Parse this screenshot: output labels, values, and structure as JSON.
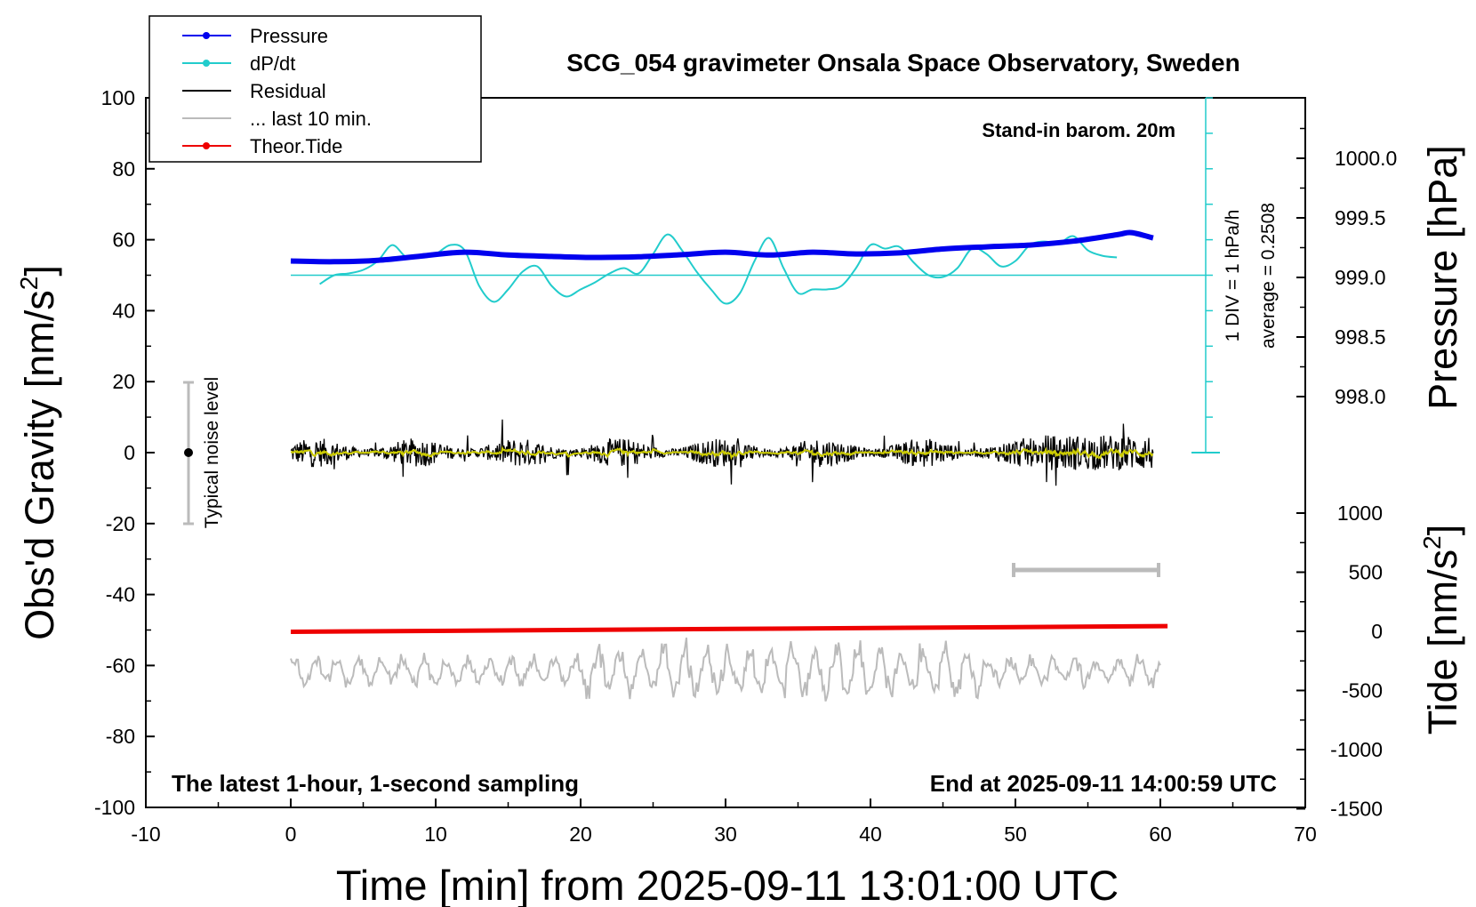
{
  "chart_data": {
    "type": "line",
    "title": "SCG_054 gravimeter Onsala Space Observatory, Sweden",
    "xlabel": "Time [min] from 2025-09-11 13:01:00 UTC",
    "ylabel_left": "Obs'd Gravity [nm/s",
    "ylabel_left_sup": "2",
    "ylabel_left_end": "]",
    "ylabel_right_top": "Pressure [hPa]",
    "ylabel_right_bottom": "Tide [nm/s",
    "ylabel_right_bottom_sup": "2",
    "ylabel_right_bottom_end": "]",
    "xlim": [
      -10,
      70
    ],
    "ylim": [
      -100,
      100
    ],
    "xticks": [
      "-10",
      "0",
      "10",
      "20",
      "30",
      "40",
      "50",
      "60",
      "70"
    ],
    "yticks": [
      "100",
      "80",
      "60",
      "40",
      "20",
      "0",
      "-20",
      "-40",
      "-60",
      "-80",
      "-100"
    ],
    "pressure_ticks": [
      "1000.0",
      "999.5",
      "999.0",
      "998.5",
      "998.0"
    ],
    "tide_ticks": [
      "1000",
      "500",
      "0",
      "-500",
      "-1000",
      "-1500"
    ],
    "legend": [
      {
        "label": "Pressure",
        "color": "#0000ee"
      },
      {
        "label": "dP/dt",
        "color": "#22cccc"
      },
      {
        "label": "Residual",
        "color": "#000000"
      },
      {
        "label": "... last 10 min.",
        "color": "#bbbbbb"
      },
      {
        "label": "Theor.Tide",
        "color": "#ee0000"
      }
    ],
    "annotations": {
      "barom": "Stand-in barom. 20m",
      "div_note": "1 DIV = 1 hPa/h",
      "average": "average = 0.2508",
      "noise": "Typical noise level",
      "latest": "The latest 1-hour, 1-second sampling",
      "end": "End at 2025-09-11 14:00:59 UTC"
    },
    "series": [
      {
        "name": "Pressure",
        "x": [
          0,
          3,
          6,
          9,
          12,
          15,
          18,
          21,
          24,
          27,
          30,
          33,
          36,
          39,
          42,
          45,
          48,
          51,
          54,
          57,
          58,
          59.5
        ],
        "y": [
          54,
          53.8,
          54.2,
          55.4,
          56.5,
          55.7,
          55.3,
          55.0,
          55.2,
          55.8,
          56.5,
          55.7,
          56.5,
          56.0,
          56.3,
          57.4,
          58.0,
          58.5,
          59.6,
          61.4,
          62.0,
          60.5
        ]
      },
      {
        "name": "dP/dt",
        "baseline": 50,
        "x": [
          2,
          3,
          4,
          5,
          6,
          7,
          8,
          9,
          10,
          11,
          12,
          13,
          14,
          15,
          16,
          17,
          18,
          19,
          20,
          21,
          22,
          23,
          24,
          25,
          26,
          27,
          28,
          29,
          30,
          31,
          32,
          33,
          34,
          35,
          36,
          37,
          38,
          39,
          40,
          41,
          42,
          43,
          44,
          45,
          46,
          47,
          48,
          49,
          50,
          51,
          52,
          53,
          54,
          55,
          56,
          57
        ],
        "y": [
          47.5,
          50,
          50.5,
          51.5,
          54,
          58.5,
          55,
          55.5,
          56,
          58.5,
          57,
          47,
          42.5,
          46,
          51,
          52.5,
          47,
          44,
          46,
          48,
          50.5,
          52,
          50.5,
          56,
          61.5,
          57,
          51,
          46,
          42,
          45,
          54,
          60.5,
          52,
          45,
          46,
          46,
          47,
          52,
          58.5,
          57.5,
          58,
          53.5,
          50,
          49.5,
          52,
          57.5,
          56,
          52.5,
          54,
          58.5,
          59.5,
          59,
          61,
          57,
          55.5,
          55
        ]
      },
      {
        "name": "Theor.Tide",
        "x": [
          0,
          60.5
        ],
        "y": [
          -50.5,
          -48.9
        ]
      }
    ]
  }
}
